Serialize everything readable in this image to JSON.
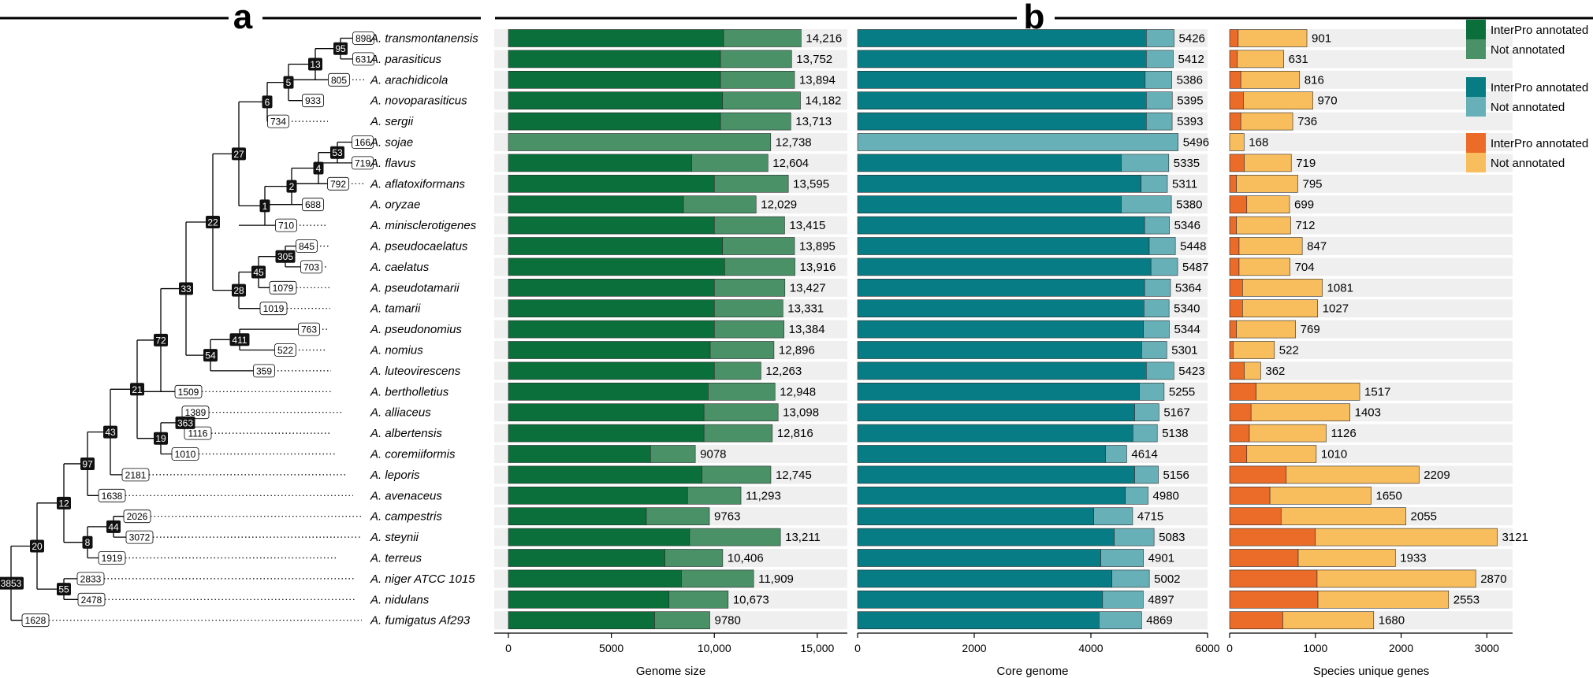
{
  "panel_labels": {
    "a": "a",
    "b": "b"
  },
  "legend": [
    {
      "group": "genome",
      "items": [
        {
          "label": "InterPro annotated",
          "color": "#0a6f3a"
        },
        {
          "label": "Not annotated",
          "color": "#4a9168"
        }
      ]
    },
    {
      "group": "core",
      "items": [
        {
          "label": "InterPro annotated",
          "color": "#087c84"
        },
        {
          "label": "Not annotated",
          "color": "#67b0b8"
        }
      ]
    },
    {
      "group": "unique",
      "items": [
        {
          "label": "InterPro annotated",
          "color": "#ea6c28"
        },
        {
          "label": "Not annotated",
          "color": "#f8bd5c"
        }
      ]
    }
  ],
  "tree_nodes": {
    "black": [
      "95",
      "13",
      "5",
      "6",
      "53",
      "4",
      "2",
      "1",
      "27",
      "305",
      "45",
      "28",
      "22",
      "411",
      "54",
      "33",
      "72",
      "363",
      "19",
      "21",
      "43",
      "97",
      "44",
      "8",
      "12",
      "55",
      "20",
      "3853"
    ],
    "white": [
      "898",
      "631",
      "805",
      "933",
      "734",
      "166",
      "719",
      "792",
      "688",
      "710",
      "845",
      "703",
      "1079",
      "1019",
      "763",
      "522",
      "359",
      "1509",
      "1389",
      "1116",
      "1010",
      "2181",
      "1638",
      "2026",
      "3072",
      "1919",
      "2833",
      "2478",
      "1628"
    ]
  },
  "chart_data": [
    {
      "type": "bar",
      "orientation": "horizontal",
      "stacked": true,
      "xlabel": "Genome size",
      "xlim": [
        0,
        16000
      ],
      "xticks": [
        "0",
        "5000",
        "10,000",
        "15,000"
      ],
      "categories": [
        "A. transmontanensis",
        "A. parasiticus",
        "A. arachidicola",
        "A. novoparasiticus",
        "A. sergii",
        "A. sojae",
        "A. flavus",
        "A. aflatoxiformans",
        "A. oryzae",
        "A. minisclerotigenes",
        "A. pseudocaelatus",
        "A. caelatus",
        "A. pseudotamarii",
        "A. tamarii",
        "A. pseudonomius",
        "A. nomius",
        "A. luteovirescens",
        "A. bertholletius",
        "A. alliaceus",
        "A. albertensis",
        "A. coremiiformis",
        "A. leporis",
        "A. avenaceus",
        "A. campestris",
        "A. steynii",
        "A. terreus",
        "A. niger ATCC 1015",
        "A. nidulans",
        "A. fumigatus Af293"
      ],
      "series": [
        {
          "name": "InterPro annotated",
          "values": [
            10450,
            10300,
            10300,
            10400,
            10300,
            0,
            8900,
            10000,
            8500,
            10000,
            10400,
            10500,
            10000,
            10000,
            10000,
            9800,
            10000,
            9700,
            9500,
            9500,
            6900,
            9400,
            8700,
            6700,
            8800,
            7600,
            8400,
            7800,
            7100
          ]
        },
        {
          "name": "Not annotated",
          "values": [
            3766,
            3452,
            3594,
            3782,
            3413,
            12738,
            3704,
            3595,
            3529,
            3415,
            3495,
            3416,
            3427,
            3331,
            3384,
            3096,
            2263,
            3248,
            3598,
            3316,
            2178,
            3345,
            2593,
            3063,
            4411,
            2806,
            3509,
            2873,
            2680
          ]
        }
      ],
      "labels": [
        "14,216",
        "13,752",
        "13,894",
        "14,182",
        "13,713",
        "12,738",
        "12,604",
        "13,595",
        "12,029",
        "13,415",
        "13,895",
        "13,916",
        "13,427",
        "13,331",
        "13,384",
        "12,896",
        "12,263",
        "12,948",
        "13,098",
        "12,816",
        "9078",
        "12,745",
        "11,293",
        "9763",
        "13,211",
        "10,406",
        "11,909",
        "10,673",
        "9780"
      ]
    },
    {
      "type": "bar",
      "orientation": "horizontal",
      "stacked": true,
      "xlabel": "Core genome",
      "xlim": [
        0,
        6000
      ],
      "xticks": [
        "0",
        "2000",
        "4000",
        "6000"
      ],
      "series": [
        {
          "name": "InterPro annotated",
          "values": [
            4950,
            4950,
            4930,
            4950,
            4950,
            0,
            4520,
            4860,
            4520,
            4920,
            5000,
            5030,
            4920,
            4910,
            4900,
            4870,
            4950,
            4830,
            4750,
            4720,
            4250,
            4750,
            4590,
            4050,
            4400,
            4170,
            4360,
            4200,
            4140
          ]
        },
        {
          "name": "Not annotated",
          "values": [
            476,
            462,
            456,
            445,
            443,
            5496,
            815,
            451,
            860,
            426,
            448,
            457,
            444,
            430,
            444,
            431,
            473,
            425,
            417,
            418,
            364,
            406,
            390,
            665,
            683,
            731,
            642,
            697,
            729
          ]
        }
      ],
      "labels": [
        "5426",
        "5412",
        "5386",
        "5395",
        "5393",
        "5496",
        "5335",
        "5311",
        "5380",
        "5346",
        "5448",
        "5487",
        "5364",
        "5340",
        "5344",
        "5301",
        "5423",
        "5255",
        "5167",
        "5138",
        "4614",
        "5156",
        "4980",
        "4715",
        "5083",
        "4901",
        "5002",
        "4897",
        "4869"
      ]
    },
    {
      "type": "bar",
      "orientation": "horizontal",
      "stacked": true,
      "xlabel": "Species unique genes",
      "xlim": [
        0,
        3300
      ],
      "xticks": [
        "0",
        "1000",
        "2000",
        "3000"
      ],
      "series": [
        {
          "name": "InterPro annotated",
          "values": [
            100,
            90,
            130,
            160,
            130,
            0,
            170,
            80,
            200,
            80,
            110,
            110,
            150,
            150,
            80,
            40,
            170,
            310,
            250,
            230,
            200,
            660,
            470,
            600,
            1000,
            800,
            1020,
            1030,
            620
          ]
        },
        {
          "name": "Not annotated",
          "values": [
            801,
            541,
            686,
            810,
            606,
            168,
            549,
            715,
            499,
            632,
            737,
            594,
            931,
            877,
            689,
            482,
            192,
            1207,
            1153,
            896,
            810,
            1549,
            1180,
            1455,
            2121,
            1133,
            1850,
            1523,
            1060
          ]
        }
      ],
      "labels": [
        "901",
        "631",
        "816",
        "970",
        "736",
        "168",
        "719",
        "795",
        "699",
        "712",
        "847",
        "704",
        "1081",
        "1027",
        "769",
        "522",
        "362",
        "1517",
        "1403",
        "1126",
        "1010",
        "2209",
        "1650",
        "2055",
        "3121",
        "1933",
        "2870",
        "2553",
        "1680"
      ]
    }
  ]
}
